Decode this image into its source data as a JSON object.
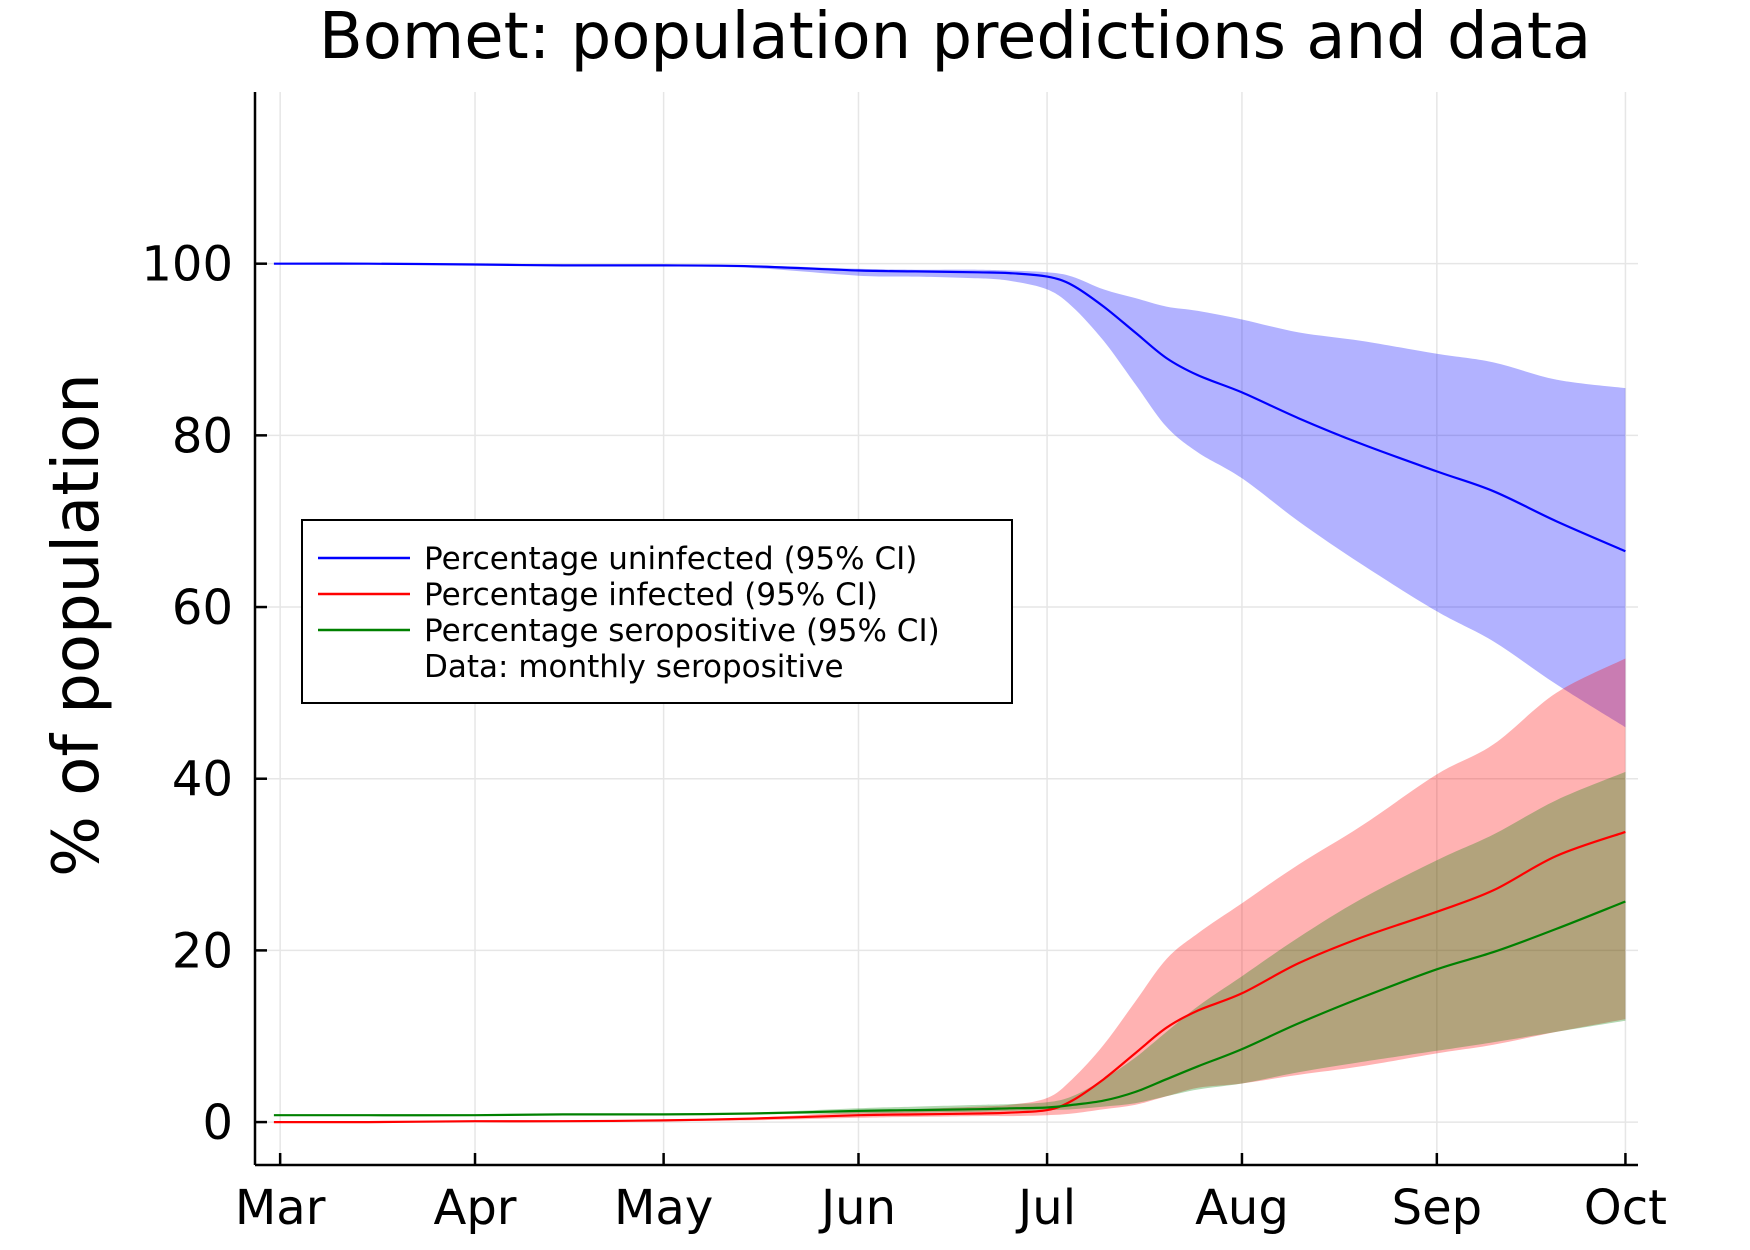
{
  "chart_data": {
    "type": "area",
    "title": "Bomet: population predictions and data",
    "xlabel": "",
    "ylabel": "% of population",
    "x_tick_labels": [
      "Mar",
      "Apr",
      "May",
      "Jun",
      "Jul",
      "Aug",
      "Sep",
      "Oct"
    ],
    "y_ticks": [
      0,
      20,
      40,
      60,
      80,
      100
    ],
    "ylim": [
      -5,
      120
    ],
    "grid": true,
    "legend_position": "left-middle",
    "x": [
      "Feb 28",
      "Mar 15",
      "Apr 1",
      "Apr 15",
      "May 1",
      "May 15",
      "Jun 1",
      "Jun 10",
      "Jun 20",
      "Jun 25",
      "Jul 1",
      "Jul 5",
      "Jul 10",
      "Jul 15",
      "Jul 20",
      "Jul 25",
      "Aug 1",
      "Aug 10",
      "Aug 20",
      "Sep 1",
      "Sep 10",
      "Sep 20",
      "Oct 1"
    ],
    "series": [
      {
        "name": "Percentage uninfected (95% CI)",
        "color": "#0000ff",
        "values": [
          100,
          100,
          99.9,
          99.8,
          99.8,
          99.7,
          99.2,
          99.1,
          99.0,
          98.9,
          98.5,
          97.5,
          95.0,
          92.0,
          89.0,
          87.0,
          85.0,
          82.0,
          79.0,
          75.8,
          73.5,
          70.0,
          66.5
        ],
        "lower": [
          100,
          100,
          99.9,
          99.8,
          99.7,
          99.5,
          98.6,
          98.5,
          98.3,
          98.0,
          97.0,
          95.0,
          91.0,
          86.0,
          81.0,
          78.0,
          75.0,
          70.0,
          65.0,
          59.5,
          56.0,
          51.0,
          46.0
        ],
        "upper": [
          100,
          100,
          99.9,
          99.8,
          99.8,
          99.8,
          99.4,
          99.3,
          99.3,
          99.2,
          99.0,
          98.5,
          97.0,
          96.0,
          95.0,
          94.5,
          93.5,
          92.0,
          91.0,
          89.5,
          88.5,
          86.5,
          85.5
        ]
      },
      {
        "name": "Percentage infected (95% CI)",
        "color": "#ff0000",
        "values": [
          0,
          0,
          0.1,
          0.1,
          0.2,
          0.4,
          0.8,
          0.9,
          1.0,
          1.1,
          1.4,
          2.5,
          5.0,
          8.0,
          11.0,
          13.0,
          15.0,
          18.5,
          21.5,
          24.5,
          27.0,
          31.0,
          33.8
        ],
        "lower": [
          0,
          0,
          0.1,
          0.1,
          0.1,
          0.2,
          0.5,
          0.6,
          0.7,
          0.7,
          0.8,
          1.0,
          1.5,
          2.0,
          3.0,
          4.0,
          4.5,
          5.5,
          6.5,
          8.0,
          9.0,
          10.5,
          12.0
        ],
        "upper": [
          0,
          0,
          0.1,
          0.1,
          0.3,
          0.5,
          1.2,
          1.5,
          1.8,
          2.0,
          2.8,
          5.0,
          9.0,
          14.0,
          19.0,
          22.0,
          25.5,
          30.0,
          34.5,
          40.5,
          44.0,
          50.0,
          54.0
        ]
      },
      {
        "name": "Percentage seropositive (95% CI)",
        "color": "#008000",
        "values": [
          0.8,
          0.8,
          0.8,
          0.9,
          0.9,
          1.0,
          1.3,
          1.4,
          1.5,
          1.6,
          1.7,
          2.0,
          2.5,
          3.5,
          5.0,
          6.5,
          8.5,
          11.5,
          14.5,
          17.8,
          19.8,
          22.5,
          25.7
        ],
        "lower": [
          0.8,
          0.8,
          0.8,
          0.8,
          0.8,
          0.9,
          1.0,
          1.1,
          1.2,
          1.3,
          1.4,
          1.5,
          1.8,
          2.2,
          3.0,
          3.8,
          4.5,
          5.8,
          7.0,
          8.3,
          9.3,
          10.5,
          11.8
        ],
        "upper": [
          0.8,
          0.8,
          0.8,
          0.9,
          1.0,
          1.1,
          1.6,
          1.8,
          2.0,
          2.1,
          2.3,
          3.0,
          5.0,
          7.5,
          10.5,
          13.5,
          17.0,
          21.5,
          26.0,
          30.5,
          33.5,
          37.5,
          40.8
        ]
      }
    ],
    "extra_legend_entries": [
      "Data: monthly seropositive"
    ]
  }
}
